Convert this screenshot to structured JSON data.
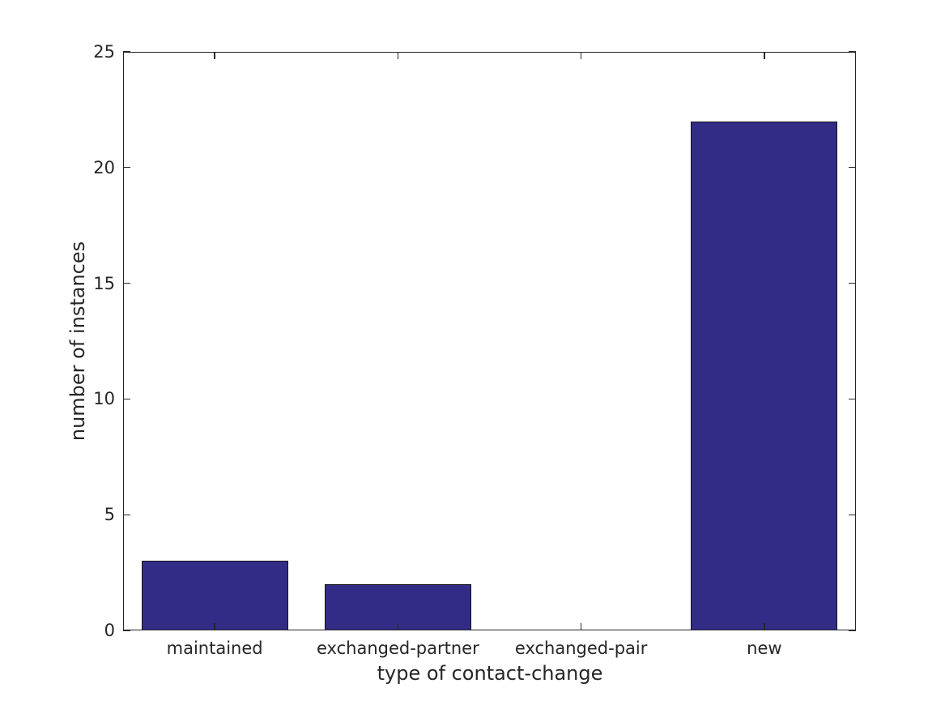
{
  "chart_data": {
    "type": "bar",
    "title": "",
    "xlabel": "type of contact-change",
    "ylabel": "number of instances",
    "categories": [
      "maintained",
      "exchanged-partner",
      "exchanged-pair",
      "new"
    ],
    "values": [
      3,
      2,
      0,
      22
    ],
    "ylim": [
      0,
      25
    ],
    "yticks": [
      0,
      5,
      10,
      15,
      20,
      25
    ],
    "bar_width_fraction": 0.8,
    "bar_color": "#332c87",
    "bar_edge_color": "#141414",
    "axis_color": "#262626",
    "text_color": "#262626",
    "background_color": "#ffffff",
    "grid": false,
    "legend": false,
    "tick_direction": "in",
    "box": true
  }
}
